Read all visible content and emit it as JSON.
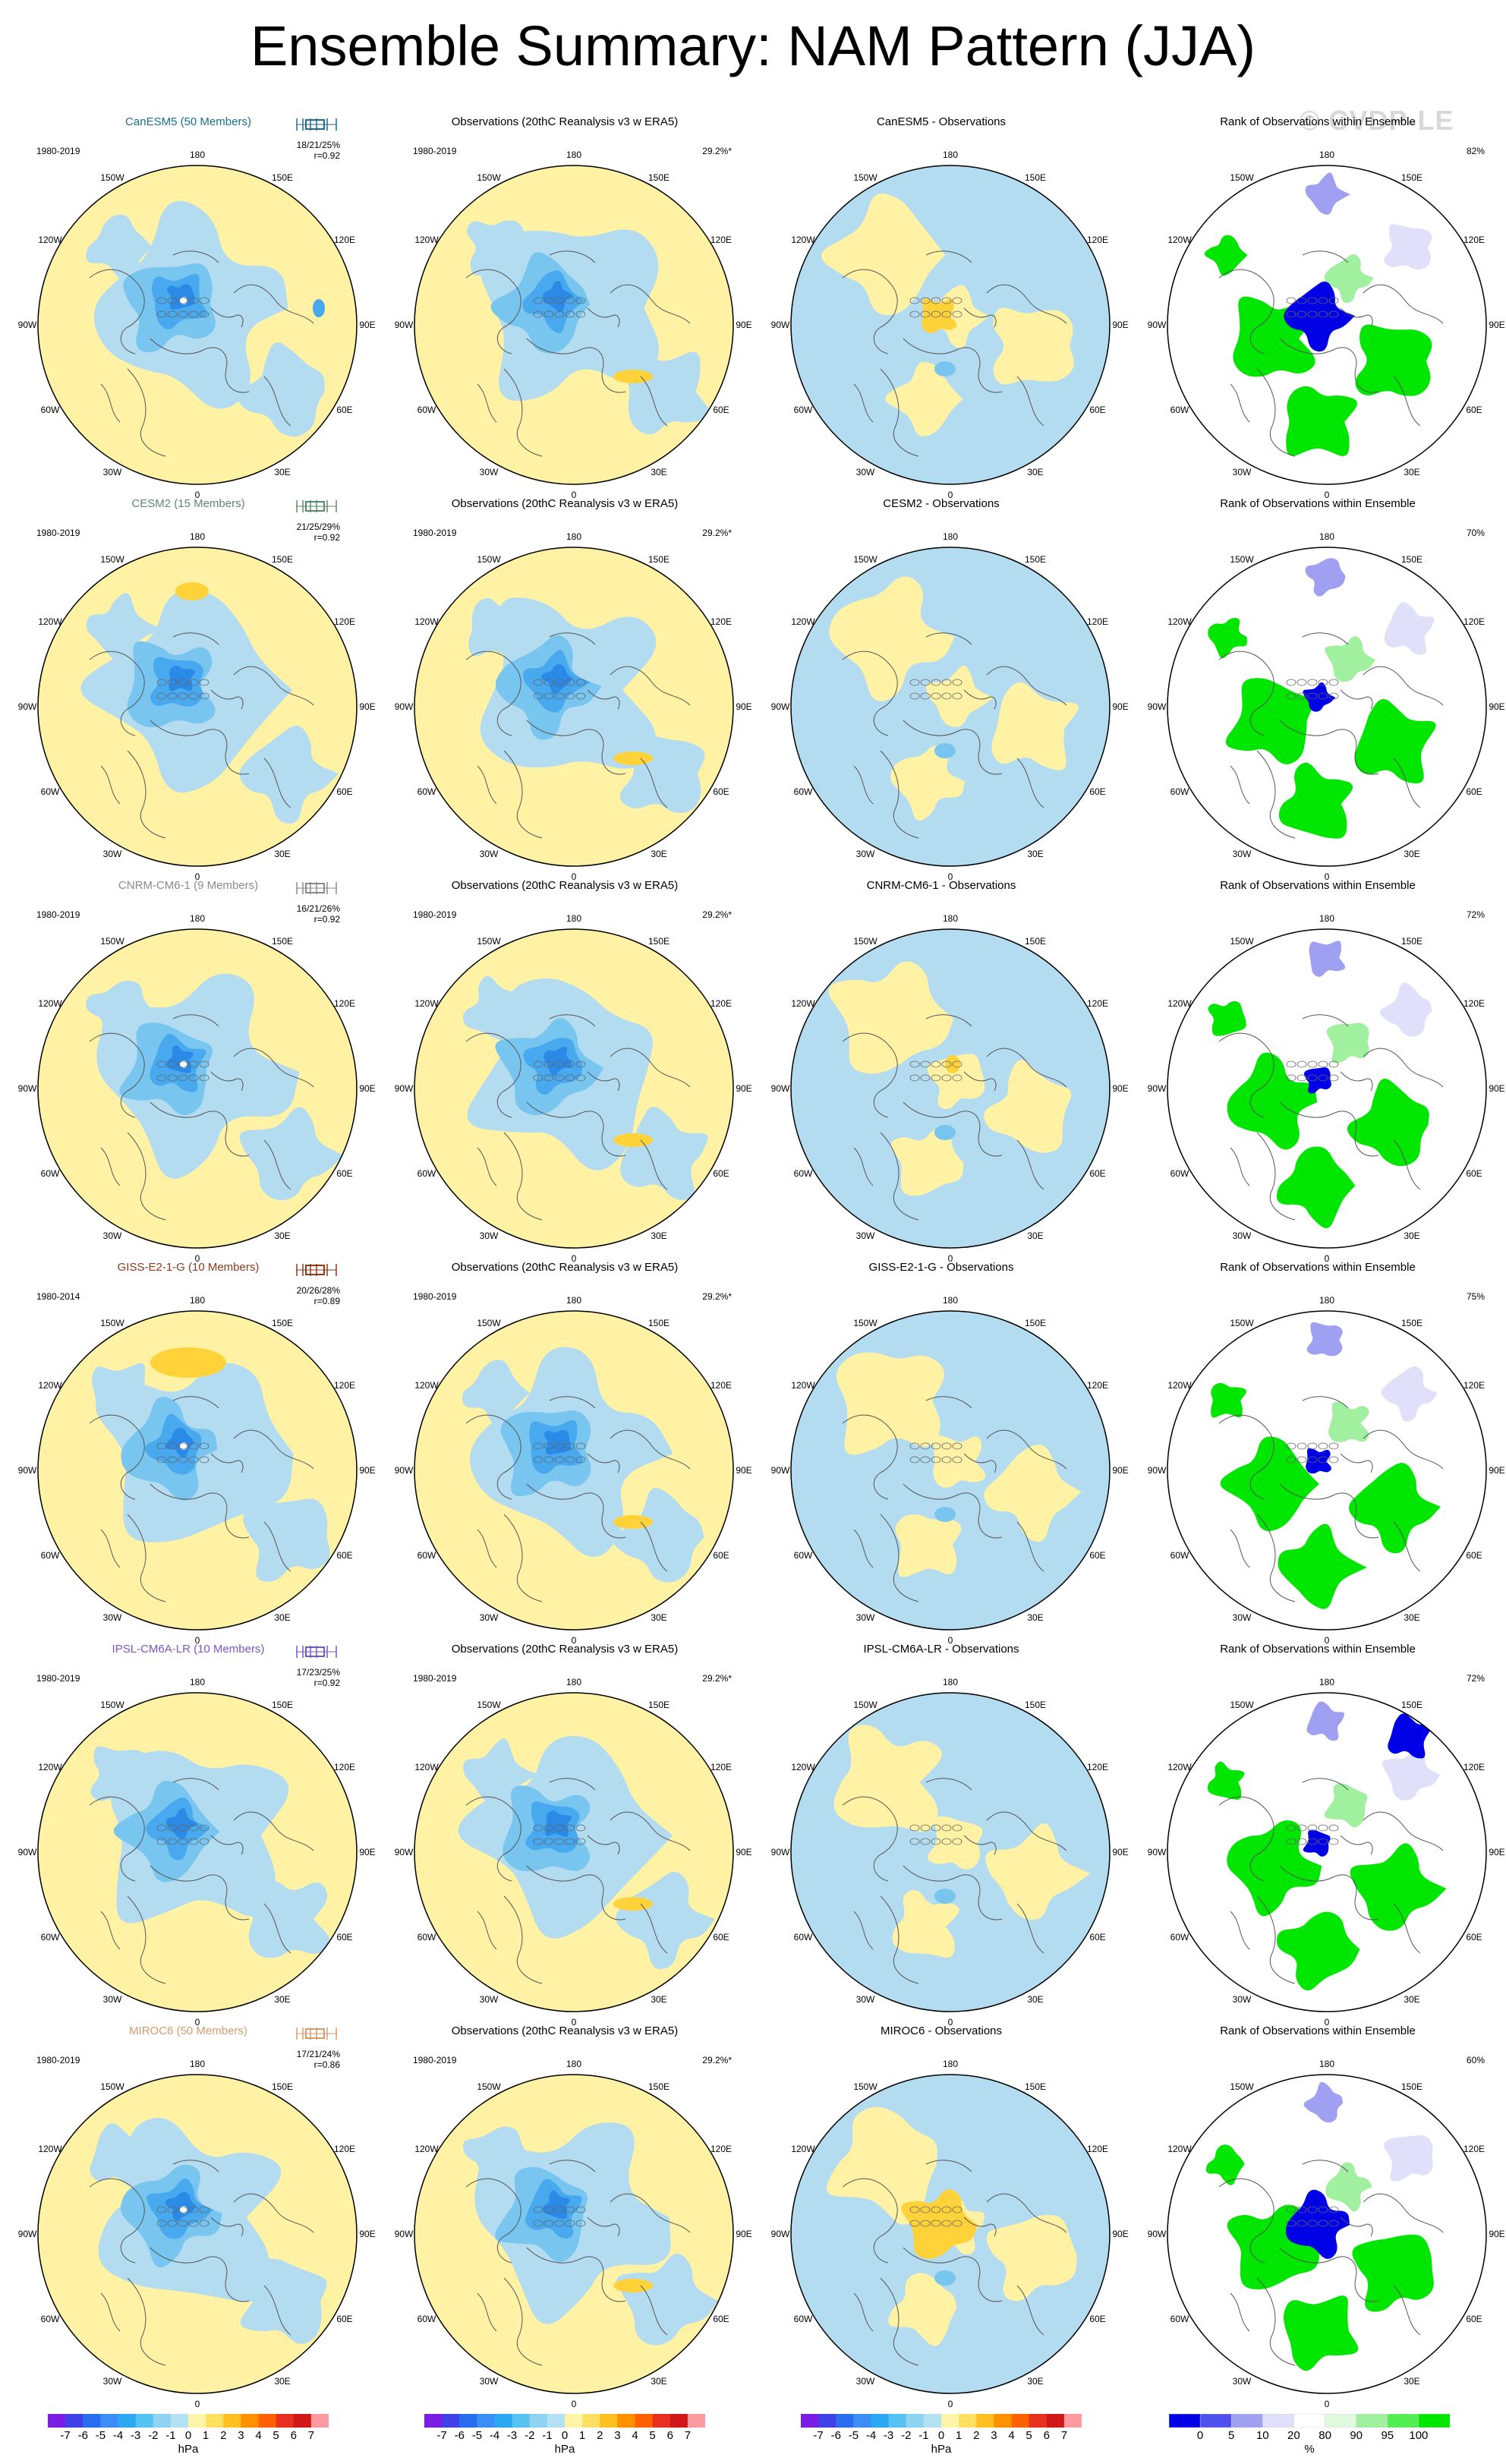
{
  "title": "Ensemble Summary: NAM Pattern (JJA)",
  "watermark": "© CVDP-LE",
  "lon_labels": [
    "180",
    "150E",
    "120E",
    "90E",
    "60E",
    "30E",
    "0",
    "30W",
    "60W",
    "90W",
    "120W",
    "150W"
  ],
  "obs_title": "Observations (20thC Reanalysis v3 w ERA5)",
  "rank_title": "Rank of Observations within Ensemble",
  "obs_period": "1980-2019",
  "obs_pct": "29.2%*",
  "rows": [
    {
      "model": "CanESM5",
      "model_title": "CanESM5 (50 Members)",
      "color": "#1a6e8f",
      "period": "1980-2019",
      "stats": "18/21/25%",
      "r": "r=0.92",
      "diff_title": "CanESM5 - Observations",
      "rank_pct": "82%"
    },
    {
      "model": "CESM2",
      "model_title": "CESM2 (15 Members)",
      "color": "#5a8a6a",
      "period": "1980-2019",
      "stats": "21/25/29%",
      "r": "r=0.92",
      "diff_title": "CESM2 - Observations",
      "rank_pct": "70%"
    },
    {
      "model": "CNRM-CM6-1",
      "model_title": "CNRM-CM6-1 (9 Members)",
      "color": "#8a8a8a",
      "period": "1980-2019",
      "stats": "16/21/26%",
      "r": "r=0.92",
      "diff_title": "CNRM-CM6-1 - Observations",
      "rank_pct": "72%"
    },
    {
      "model": "GISS-E2-1-G",
      "model_title": "GISS-E2-1-G (10 Members)",
      "color": "#8b3a1a",
      "period": "1980-2014",
      "stats": "20/26/28%",
      "r": "r=0.89",
      "diff_title": "GISS-E2-1-G - Observations",
      "rank_pct": "75%"
    },
    {
      "model": "IPSL-CM6A-LR",
      "model_title": "IPSL-CM6A-LR (10 Members)",
      "color": "#7a55c8",
      "period": "1980-2019",
      "stats": "17/23/25%",
      "r": "r=0.92",
      "diff_title": "IPSL-CM6A-LR - Observations",
      "rank_pct": "72%"
    },
    {
      "model": "MIROC6",
      "model_title": "MIROC6 (50 Members)",
      "color": "#d49a6a",
      "period": "1980-2019",
      "stats": "17/21/24%",
      "r": "r=0.86",
      "diff_title": "MIROC6 - Observations",
      "rank_pct": "60%"
    }
  ],
  "colorbars": {
    "hpa_labels": [
      "-7",
      "-6",
      "-5",
      "-4",
      "-3",
      "-2",
      "-1",
      "0",
      "1",
      "2",
      "3",
      "4",
      "5",
      "6",
      "7"
    ],
    "hpa_unit": "hPa",
    "hpa_colors": [
      "#7a1ee6",
      "#4040e8",
      "#2a6ef0",
      "#3a8ef5",
      "#2aa8f2",
      "#56c4f2",
      "#8ed4f2",
      "#b4e2f2",
      "#fff5a8",
      "#ffe060",
      "#ffc020",
      "#ff9000",
      "#ff6000",
      "#e83020",
      "#d01818",
      "#ff9aa0"
    ],
    "rank_labels": [
      "0",
      "5",
      "10",
      "20",
      "80",
      "90",
      "95",
      "100"
    ],
    "rank_unit": "%",
    "rank_colors": [
      "#0000e6",
      "#5050ee",
      "#a0a0f2",
      "#e0e0fa",
      "#ffffff",
      "#e0fae0",
      "#a0f0a0",
      "#50ee50",
      "#00e600"
    ]
  }
}
